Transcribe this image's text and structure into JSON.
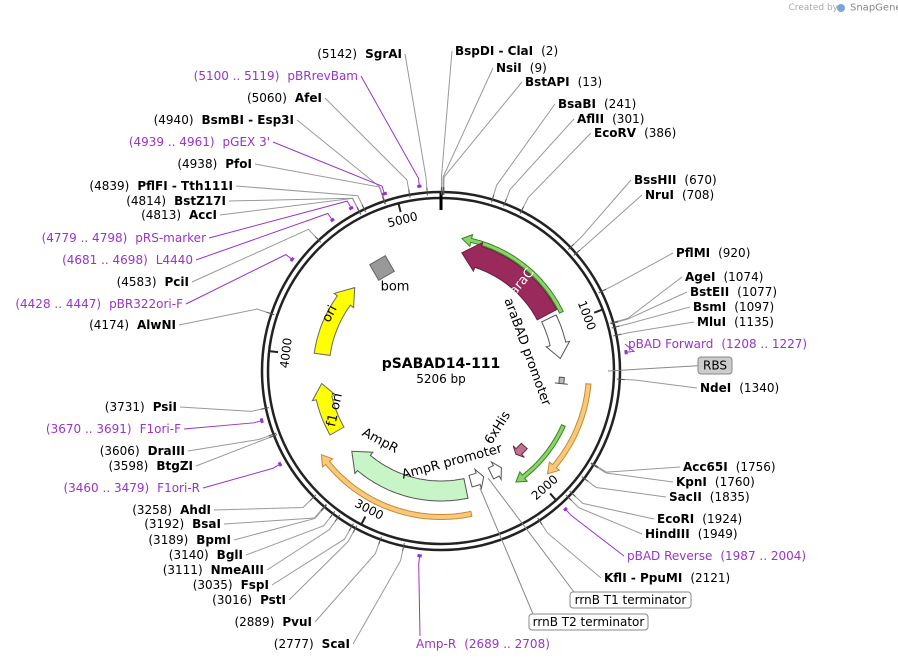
{
  "credit": {
    "prefix": "Created by",
    "brand": "SnapGene"
  },
  "plasmid": {
    "name": "pSABAD14-111",
    "length": {
      "value": 5206,
      "label": "5206 bp"
    },
    "ruler": [
      1000,
      2000,
      3000,
      4000,
      5000
    ]
  },
  "sites": [
    {
      "name": "BspDI - ClaI",
      "position": {
        "value": 2,
        "label": "(2)"
      }
    },
    {
      "name": "NsiI",
      "position": {
        "value": 9,
        "label": "(9)"
      }
    },
    {
      "name": "BstAPI",
      "position": {
        "value": 13,
        "label": "(13)"
      }
    },
    {
      "name": "BsaBI",
      "position": {
        "value": 241,
        "label": "(241)"
      }
    },
    {
      "name": "AflII",
      "position": {
        "value": 301,
        "label": "(301)"
      }
    },
    {
      "name": "EcoRV",
      "position": {
        "value": 386,
        "label": "(386)"
      }
    },
    {
      "name": "BssHII",
      "position": {
        "value": 670,
        "label": "(670)"
      }
    },
    {
      "name": "NruI",
      "position": {
        "value": 708,
        "label": "(708)"
      }
    },
    {
      "name": "PflMI",
      "position": {
        "value": 920,
        "label": "(920)"
      }
    },
    {
      "name": "AgeI",
      "position": {
        "value": 1074,
        "label": "(1074)"
      }
    },
    {
      "name": "BstEII",
      "position": {
        "value": 1077,
        "label": "(1077)"
      }
    },
    {
      "name": "BsmI",
      "position": {
        "value": 1097,
        "label": "(1097)"
      }
    },
    {
      "name": "MluI",
      "position": {
        "value": 1135,
        "label": "(1135)"
      }
    },
    {
      "name": "NdeI",
      "position": {
        "value": 1340,
        "label": "(1340)"
      }
    },
    {
      "name": "Acc65I",
      "position": {
        "value": 1756,
        "label": "(1756)"
      }
    },
    {
      "name": "KpnI",
      "position": {
        "value": 1760,
        "label": "(1760)"
      }
    },
    {
      "name": "SacII",
      "position": {
        "value": 1835,
        "label": "(1835)"
      }
    },
    {
      "name": "EcoRI",
      "position": {
        "value": 1924,
        "label": "(1924)"
      }
    },
    {
      "name": "HindIII",
      "position": {
        "value": 1949,
        "label": "(1949)"
      }
    },
    {
      "name": "KflI - PpuMI",
      "position": {
        "value": 2121,
        "label": "(2121)"
      }
    },
    {
      "name": "SgrAI",
      "position": {
        "value": 5142,
        "label": "(5142)"
      }
    },
    {
      "name": "AfeI",
      "position": {
        "value": 5060,
        "label": "(5060)"
      }
    },
    {
      "name": "BsmBI - Esp3I",
      "position": {
        "value": 4940,
        "label": "(4940)"
      }
    },
    {
      "name": "PfoI",
      "position": {
        "value": 4938,
        "label": "(4938)"
      }
    },
    {
      "name": "PflFI - Tth111I",
      "position": {
        "value": 4839,
        "label": "(4839)"
      }
    },
    {
      "name": "BstZ17I",
      "position": {
        "value": 4814,
        "label": "(4814)"
      }
    },
    {
      "name": "AccI",
      "position": {
        "value": 4813,
        "label": "(4813)"
      }
    },
    {
      "name": "PciI",
      "position": {
        "value": 4583,
        "label": "(4583)"
      }
    },
    {
      "name": "AlwNI",
      "position": {
        "value": 4174,
        "label": "(4174)"
      }
    },
    {
      "name": "PsiI",
      "position": {
        "value": 3731,
        "label": "(3731)"
      }
    },
    {
      "name": "DraIII",
      "position": {
        "value": 3606,
        "label": "(3606)"
      }
    },
    {
      "name": "BtgZI",
      "position": {
        "value": 3598,
        "label": "(3598)"
      }
    },
    {
      "name": "AhdI",
      "position": {
        "value": 3258,
        "label": "(3258)"
      }
    },
    {
      "name": "BsaI",
      "position": {
        "value": 3192,
        "label": "(3192)"
      }
    },
    {
      "name": "BpmI",
      "position": {
        "value": 3189,
        "label": "(3189)"
      }
    },
    {
      "name": "BglI",
      "position": {
        "value": 3140,
        "label": "(3140)"
      }
    },
    {
      "name": "NmeAIII",
      "position": {
        "value": 3111,
        "label": "(3111)"
      }
    },
    {
      "name": "FspI",
      "position": {
        "value": 3035,
        "label": "(3035)"
      }
    },
    {
      "name": "PstI",
      "position": {
        "value": 3016,
        "label": "(3016)"
      }
    },
    {
      "name": "PvuI",
      "position": {
        "value": 2889,
        "label": "(2889)"
      }
    },
    {
      "name": "ScaI",
      "position": {
        "value": 2777,
        "label": "(2777)"
      }
    }
  ],
  "primers": [
    {
      "name": "pBAD Forward",
      "range": {
        "start": 1208,
        "end": 1227,
        "label": "(1208 .. 1227)"
      }
    },
    {
      "name": "pBAD Reverse",
      "range": {
        "start": 1987,
        "end": 2004,
        "label": "(1987 .. 2004)"
      }
    },
    {
      "name": "Amp-R",
      "range": {
        "start": 2689,
        "end": 2708,
        "label": "(2689 .. 2708)"
      }
    },
    {
      "name": "pBRrevBam",
      "range": {
        "start": 5100,
        "end": 5119,
        "label": "(5100 .. 5119)"
      }
    },
    {
      "name": "pGEX 3'",
      "range": {
        "start": 4939,
        "end": 4961,
        "label": "(4939 .. 4961)"
      }
    },
    {
      "name": "pRS-marker",
      "range": {
        "start": 4779,
        "end": 4798,
        "label": "(4779 .. 4798)"
      }
    },
    {
      "name": "L4440",
      "range": {
        "start": 4681,
        "end": 4698,
        "label": "(4681 .. 4698)"
      }
    },
    {
      "name": "pBR322ori-F",
      "range": {
        "start": 4428,
        "end": 4447,
        "label": "(4428 .. 4447)"
      }
    },
    {
      "name": "F1ori-F",
      "range": {
        "start": 3670,
        "end": 3691,
        "label": "(3670 .. 3691)"
      }
    },
    {
      "name": "F1ori-R",
      "range": {
        "start": 3460,
        "end": 3479,
        "label": "(3460 .. 3479)"
      }
    }
  ],
  "features": [
    "araC",
    "araBAD promoter",
    "RBS",
    "6xHis",
    "AmpR",
    "AmpR promoter",
    "ori",
    "f1 ori",
    "bom",
    "rrnB T1 terminator",
    "rrnB T2 terminator"
  ]
}
